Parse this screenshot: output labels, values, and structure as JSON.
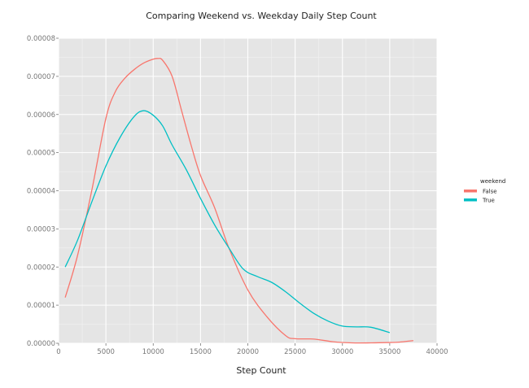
{
  "chart_data": {
    "type": "line",
    "title": "Comparing Weekend vs. Weekday Daily Step Count",
    "xlabel": "Step Count",
    "ylabel": "",
    "xlim": [
      0,
      40000
    ],
    "ylim": [
      0,
      8e-05
    ],
    "x_ticks": [
      "0",
      "5000",
      "10000",
      "15000",
      "20000",
      "25000",
      "30000",
      "35000",
      "40000"
    ],
    "y_ticks": [
      "0.00000",
      "0.00001",
      "0.00002",
      "0.00003",
      "0.00004",
      "0.00005",
      "0.00006",
      "0.00007",
      "0.00008"
    ],
    "grid": true,
    "legend": {
      "title": "weekend",
      "placement": "right",
      "entries": [
        "False",
        "True"
      ]
    },
    "series": [
      {
        "name": "False",
        "color": "#f8766d",
        "x": [
          700,
          2000,
          3500,
          5000,
          6000,
          7000,
          8000,
          9000,
          10000,
          10500,
          11000,
          12000,
          13000,
          14000,
          15000,
          16500,
          18000,
          20000,
          22000,
          24000,
          25000,
          27000,
          29000,
          31000,
          33000,
          35000,
          36000,
          37500
        ],
        "y": [
          1.2e-05,
          2.3e-05,
          4e-05,
          5.9e-05,
          6.6e-05,
          6.95e-05,
          7.18e-05,
          7.35e-05,
          7.45e-05,
          7.47e-05,
          7.42e-05,
          7e-05,
          6.1e-05,
          5.2e-05,
          4.4e-05,
          3.55e-05,
          2.5e-05,
          1.4e-05,
          7e-06,
          2e-06,
          1.2e-06,
          1.1e-06,
          4e-07,
          1e-07,
          1e-07,
          2e-07,
          3e-07,
          7e-07
        ]
      },
      {
        "name": "True",
        "color": "#00bfc4",
        "x": [
          700,
          2000,
          3500,
          5000,
          6500,
          8000,
          9000,
          10000,
          11000,
          12000,
          13500,
          15000,
          16500,
          18000,
          19500,
          21000,
          22500,
          24000,
          25500,
          27000,
          28500,
          30000,
          31500,
          33000,
          35000
        ],
        "y": [
          2e-05,
          2.7e-05,
          3.7e-05,
          4.65e-05,
          5.4e-05,
          5.95e-05,
          6.1e-05,
          5.98e-05,
          5.7e-05,
          5.2e-05,
          4.55e-05,
          3.8e-05,
          3.1e-05,
          2.5e-05,
          1.95e-05,
          1.75e-05,
          1.6e-05,
          1.35e-05,
          1.05e-05,
          7.8e-06,
          5.8e-06,
          4.5e-06,
          4.3e-06,
          4.2e-06,
          2.8e-06
        ]
      }
    ]
  }
}
